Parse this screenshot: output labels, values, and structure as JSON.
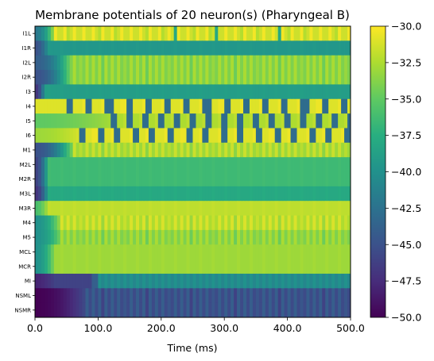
{
  "chart_data": {
    "type": "heatmap",
    "title": "Membrane potentials of 20 neuron(s) (Pharyngeal B)",
    "xlabel": "Time (ms)",
    "xlim": [
      0,
      500
    ],
    "x_ticks": [
      "0.0",
      "100.0",
      "200.0",
      "300.0",
      "400.0",
      "500.0"
    ],
    "colorbar": {
      "colormap": "viridis",
      "range": [
        -50,
        -30
      ],
      "ticks": [
        "−30.0",
        "−32.5",
        "−35.0",
        "−37.5",
        "−40.0",
        "−42.5",
        "−45.0",
        "−47.5",
        "−50.0"
      ]
    },
    "rows": [
      {
        "label": "I1L",
        "start": -42,
        "start_end_ms": 30,
        "settle": -31.5,
        "pattern": "spiky"
      },
      {
        "label": "I1R",
        "start": -45,
        "start_end_ms": 20,
        "settle": -39.5,
        "pattern": "flat"
      },
      {
        "label": "I2L",
        "start": -44,
        "start_end_ms": 55,
        "settle": -33.5,
        "pattern": "striped"
      },
      {
        "label": "I2R",
        "start": -45,
        "start_end_ms": 55,
        "settle": -33.5,
        "pattern": "striped"
      },
      {
        "label": "I3",
        "start": -47,
        "start_end_ms": 15,
        "settle": -39.0,
        "pattern": "flat"
      },
      {
        "label": "I4",
        "start": -31,
        "start_end_ms": 50,
        "settle": -31.0,
        "pattern": "oscillating"
      },
      {
        "label": "I5",
        "start": -35,
        "start_end_ms": 120,
        "settle": -32.5,
        "pattern": "oscillating"
      },
      {
        "label": "I6",
        "start": -33,
        "start_end_ms": 70,
        "settle": -31.0,
        "pattern": "oscillating"
      },
      {
        "label": "M1",
        "start": -45,
        "start_end_ms": 60,
        "settle": -32.5,
        "pattern": "striped"
      },
      {
        "label": "M2L",
        "start": -46,
        "start_end_ms": 20,
        "settle": -36.5,
        "pattern": "flat"
      },
      {
        "label": "M2R",
        "start": -46,
        "start_end_ms": 20,
        "settle": -36.5,
        "pattern": "flat"
      },
      {
        "label": "M3L",
        "start": -47,
        "start_end_ms": 20,
        "settle": -38.0,
        "pattern": "flat"
      },
      {
        "label": "M3R",
        "start": -36,
        "start_end_ms": 20,
        "settle": -32.0,
        "pattern": "flat"
      },
      {
        "label": "M4",
        "start": -40,
        "start_end_ms": 40,
        "settle": -32.0,
        "pattern": "striped"
      },
      {
        "label": "M5",
        "start": -40,
        "start_end_ms": 40,
        "settle": -33.5,
        "pattern": "striped"
      },
      {
        "label": "MCL",
        "start": -40,
        "start_end_ms": 30,
        "settle": -33.0,
        "pattern": "flat"
      },
      {
        "label": "MCR",
        "start": -40,
        "start_end_ms": 30,
        "settle": -33.0,
        "pattern": "flat"
      },
      {
        "label": "MI",
        "start": -48,
        "start_end_ms": 30,
        "settle": -46.0,
        "pattern": "flat_to_teal",
        "end": -40.5
      },
      {
        "label": "NSML",
        "start": -50,
        "start_end_ms": 80,
        "settle": -45.0,
        "pattern": "striped"
      },
      {
        "label": "NSMR",
        "start": -50,
        "start_end_ms": 80,
        "settle": -45.0,
        "pattern": "striped"
      }
    ]
  }
}
